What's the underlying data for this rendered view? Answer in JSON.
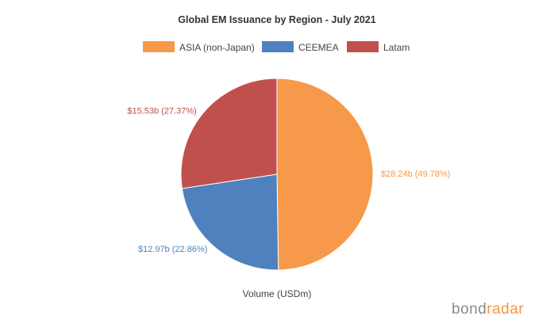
{
  "chart_data": {
    "type": "pie",
    "title": "Global EM Issuance by Region - July 2021",
    "xlabel": "Volume (USDm)",
    "legend": "top",
    "slices": [
      {
        "name": "ASIA (non-Japan)",
        "value": 28.24,
        "percent": 49.78,
        "label": "$28.24b (49.78%)",
        "color": "#f7994a"
      },
      {
        "name": "CEEMEA",
        "value": 12.97,
        "percent": 22.86,
        "label": "$12.97b (22.86%)",
        "color": "#4e81bd"
      },
      {
        "name": "Latam",
        "value": 15.53,
        "percent": 27.37,
        "label": "$15.53b (27.37%)",
        "color": "#c0504d"
      }
    ]
  },
  "brand": {
    "part1": "bond",
    "part2": "radar"
  }
}
